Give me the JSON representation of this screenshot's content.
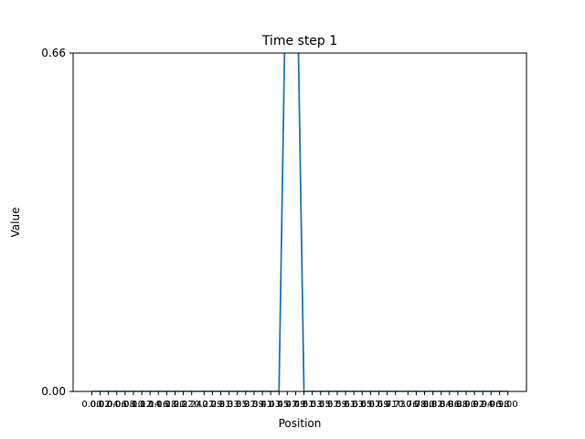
{
  "chart_data": {
    "type": "line",
    "title": "Time step 1",
    "xlabel": "Position",
    "ylabel": "Value",
    "ylim": [
      0.0,
      0.66
    ],
    "y_ticks": [
      "0.00",
      "0.66"
    ],
    "x_tick_labels": [
      "0.00",
      "0.02",
      "0.04",
      "0.06",
      "0.08",
      "0.10",
      "0.12",
      "0.14",
      "0.16",
      "0.18",
      "0.20",
      "0.22",
      "0.24",
      "0.27",
      "0.29",
      "0.31",
      "0.33",
      "0.35",
      "0.37",
      "0.39",
      "0.41",
      "0.43",
      "0.45",
      "0.47",
      "0.49",
      "0.51",
      "0.53",
      "0.55",
      "0.57",
      "0.59",
      "0.61",
      "0.63",
      "0.65",
      "0.67",
      "0.69",
      "0.71",
      "0.73",
      "0.76",
      "0.78",
      "0.80",
      "0.82",
      "0.84",
      "0.86",
      "0.88",
      "0.90",
      "0.92",
      "0.94",
      "0.96",
      "0.98",
      "1.00"
    ],
    "x": [
      0.0,
      0.02,
      0.04,
      0.06,
      0.08,
      0.1,
      0.12,
      0.14,
      0.16,
      0.18,
      0.2,
      0.22,
      0.24,
      0.27,
      0.29,
      0.31,
      0.33,
      0.35,
      0.37,
      0.39,
      0.41,
      0.43,
      0.45,
      0.47,
      0.49,
      0.51,
      0.53,
      0.55,
      0.57,
      0.59,
      0.61,
      0.63,
      0.65,
      0.67,
      0.69,
      0.71,
      0.73,
      0.76,
      0.78,
      0.8,
      0.82,
      0.84,
      0.86,
      0.88,
      0.9,
      0.92,
      0.94,
      0.96,
      0.98,
      1.0
    ],
    "series": [
      {
        "color": "#1f77b4",
        "values": [
          0,
          0,
          0,
          0,
          0,
          0,
          0,
          0,
          0,
          0,
          0,
          0,
          0,
          0,
          0,
          0,
          0,
          0,
          0,
          0,
          0,
          0,
          0,
          1.0,
          1.0,
          0,
          0,
          0,
          0,
          0,
          0,
          0,
          0,
          0,
          0,
          0,
          0,
          0,
          0,
          0,
          0,
          0,
          0,
          0,
          0,
          0,
          0,
          0,
          0,
          0
        ]
      }
    ],
    "grid": false,
    "legend": "none"
  }
}
